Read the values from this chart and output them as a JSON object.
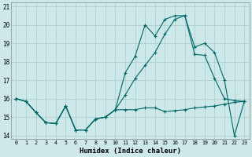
{
  "xlabel": "Humidex (Indice chaleur)",
  "bg_color": "#cce8e8",
  "grid_color": "#aacccc",
  "line_color": "#006666",
  "xlim": [
    -0.5,
    23.5
  ],
  "ylim": [
    13.8,
    21.2
  ],
  "xticks": [
    0,
    1,
    2,
    3,
    4,
    5,
    6,
    7,
    8,
    9,
    10,
    11,
    12,
    13,
    14,
    15,
    16,
    17,
    18,
    19,
    20,
    21,
    22,
    23
  ],
  "yticks": [
    14,
    15,
    16,
    17,
    18,
    19,
    20,
    21
  ],
  "line1_x": [
    0,
    1,
    2,
    3,
    4,
    5,
    6,
    7,
    8,
    9,
    10,
    11,
    12,
    13,
    14,
    15,
    16,
    17,
    18,
    19,
    20,
    21,
    22,
    23
  ],
  "line1_y": [
    16.0,
    15.85,
    15.25,
    14.7,
    14.65,
    15.6,
    14.3,
    14.3,
    14.9,
    15.0,
    15.4,
    15.4,
    15.4,
    15.5,
    15.5,
    15.3,
    15.35,
    15.4,
    15.5,
    15.55,
    15.6,
    15.7,
    15.8,
    15.85
  ],
  "line2_x": [
    0,
    1,
    2,
    3,
    4,
    5,
    6,
    7,
    8,
    9,
    10,
    11,
    12,
    13,
    14,
    15,
    16,
    17,
    18,
    19,
    20,
    21,
    22,
    23
  ],
  "line2_y": [
    16.0,
    15.85,
    15.25,
    14.7,
    14.65,
    15.6,
    14.3,
    14.3,
    14.9,
    15.0,
    15.4,
    16.2,
    17.1,
    17.8,
    18.5,
    19.5,
    20.3,
    20.5,
    18.4,
    18.35,
    17.1,
    16.0,
    15.9,
    15.85
  ],
  "line3_x": [
    0,
    1,
    2,
    3,
    4,
    5,
    6,
    7,
    8,
    9,
    10,
    11,
    12,
    13,
    14,
    15,
    16,
    17,
    18,
    19,
    20,
    21,
    22,
    23
  ],
  "line3_y": [
    16.0,
    15.85,
    15.25,
    14.7,
    14.65,
    15.6,
    14.3,
    14.3,
    14.9,
    15.0,
    15.4,
    17.4,
    18.3,
    20.0,
    19.4,
    20.3,
    20.5,
    20.5,
    18.8,
    19.0,
    18.5,
    17.0,
    14.0,
    15.85
  ]
}
